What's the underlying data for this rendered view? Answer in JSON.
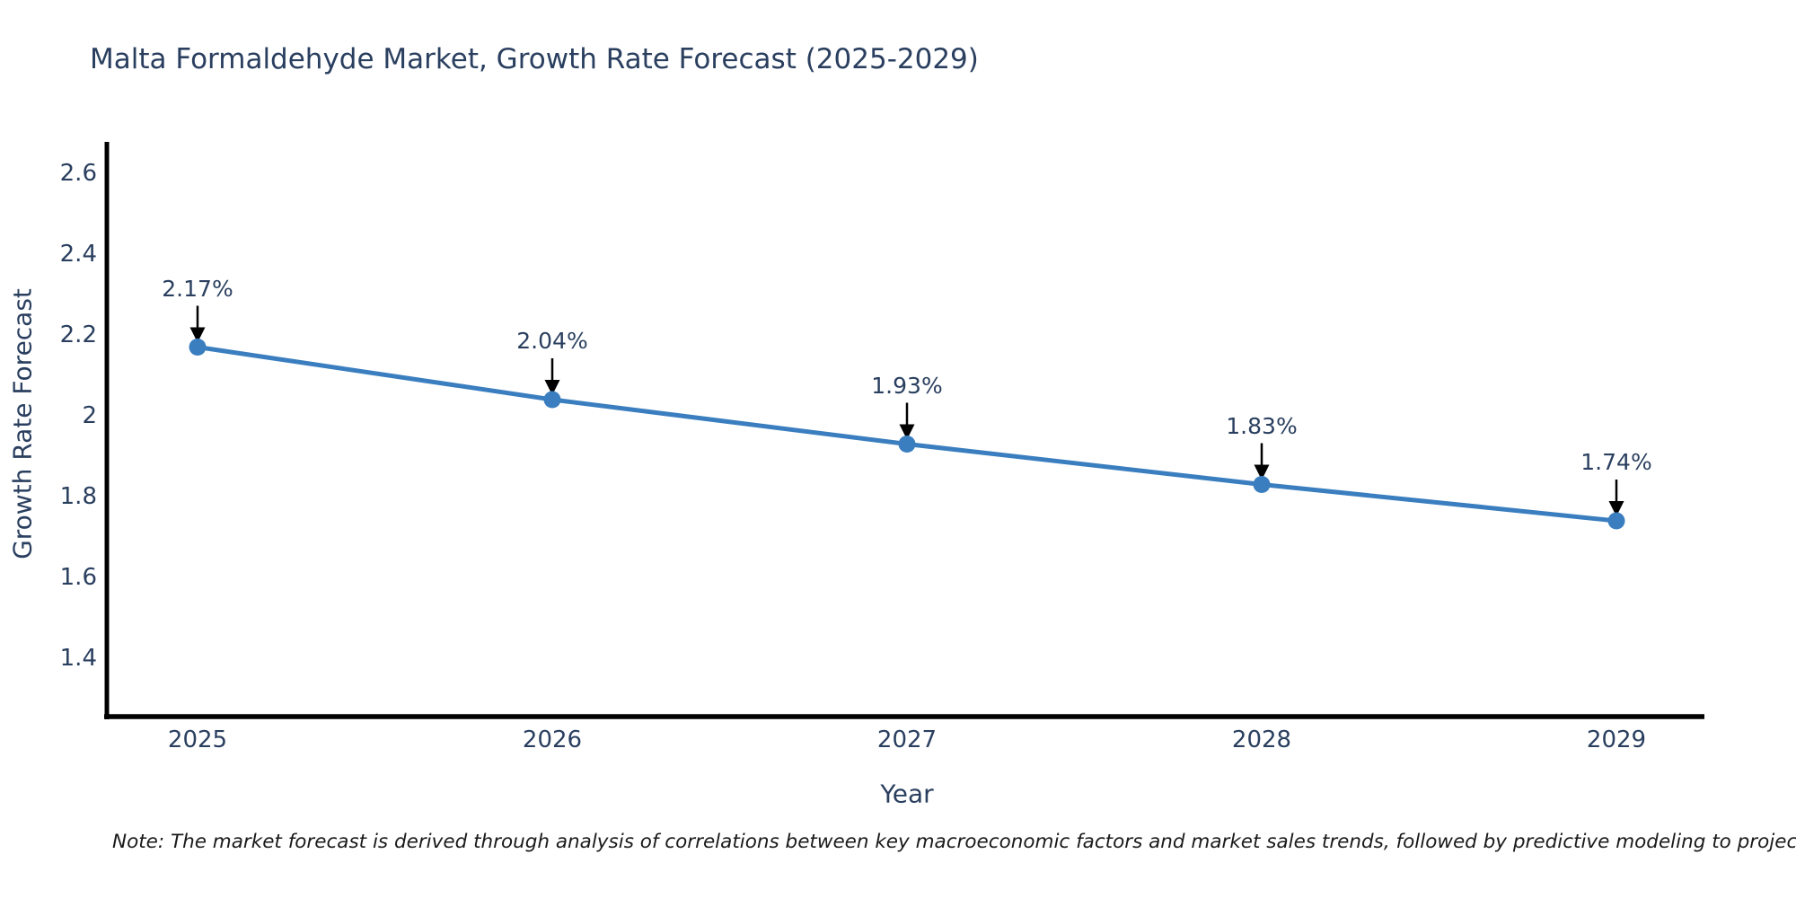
{
  "note": {
    "text": "Note: The market forecast is derived through analysis of correlations between key macroeconomic factors and market sales trends, followed by predictive modeling to project future sales"
  },
  "chart_data": {
    "type": "line",
    "title": "Malta Formaldehyde Market, Growth Rate Forecast (2025-2029)",
    "x": [
      "2025",
      "2026",
      "2027",
      "2028",
      "2029"
    ],
    "series": [
      {
        "name": "Growth Rate Forecast",
        "values": [
          2.17,
          2.04,
          1.93,
          1.83,
          1.74
        ]
      }
    ],
    "point_labels": [
      "2.17%",
      "2.04%",
      "1.93%",
      "1.83%",
      "1.74%"
    ],
    "xlabel": "Year",
    "ylabel": "Growth Rate Forecast",
    "ytick_labels": [
      "2.6",
      "2.4",
      "2.2",
      "2",
      "1.8",
      "1.6",
      "1.4"
    ],
    "ytick_values": [
      2.6,
      2.4,
      2.2,
      2.0,
      1.8,
      1.6,
      1.4
    ],
    "ylim": [
      1.26,
      2.67
    ],
    "grid": false,
    "legend": "none",
    "marker_style": "filled-circle",
    "annotation_style": "value-label-with-down-arrow",
    "colors": {
      "line": "#3a7ebf",
      "marker": "#3a7ebf",
      "axis": "#000000",
      "arrow": "#000000",
      "text": "#2a3f5f",
      "note_text": "#1a1a1a"
    }
  }
}
